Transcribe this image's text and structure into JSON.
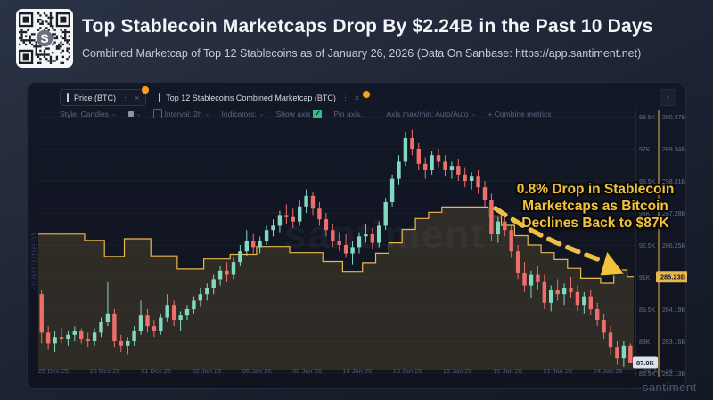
{
  "header": {
    "title": "Top Stablecoin Marketcaps Drop By $2.24B in the Past 10 Days",
    "subtitle": "Combined Marketcap of Top 12 Stablecoins as of January 26, 2026 (Data On Sanbase: https://app.santiment.net)"
  },
  "qr": {
    "logo_letter": "S"
  },
  "icons": {
    "more": "⋮",
    "close": "×",
    "chevron": "⌄",
    "check": "✓",
    "expand": "▫"
  },
  "chart_panel": {
    "tabs": [
      {
        "label": "Price (BTC)",
        "accent_color": "#c7d0e0"
      },
      {
        "label": "Top 12 Stablecoins Combined Marketcap (BTC)",
        "accent_color": "#f0bf45"
      }
    ],
    "toolbar": {
      "style_label": "Style: Candles",
      "interval_label": "Interval: 2h",
      "indicators_label": "Indicators:",
      "show_axis_label": "Show axis",
      "pin_axis_label": "Pin axis.",
      "axis_maxmin_label": "Axis max/min: Auto/Auto",
      "combine_label": "+ Combine metrics"
    },
    "watermark_center": "santiment",
    "watermark_left": "·santiment·",
    "brand_logo": "·santiment·"
  },
  "annotation": {
    "line1": "0.8% Drop in Stablecoin",
    "line2": "Marketcaps as Bitcoin",
    "line3": "Declines Back to $87K"
  },
  "chart_data": {
    "type": "candlestick+step-area",
    "title": "Price (BTC) vs Top 12 Stablecoins Combined Marketcap",
    "x_axis_dates": [
      "25 Dec 25",
      "28 Dec 25",
      "31 Dec 25",
      "02 Jan 26",
      "05 Jan 26",
      "08 Jan 26",
      "10 Jan 26",
      "13 Jan 26",
      "16 Jan 26",
      "19 Jan 26",
      "21 Jan 26",
      "24 Jan 26",
      "26 Jan 26"
    ],
    "price_axis": {
      "labels": [
        "98.5K",
        "97K",
        "95.5K",
        "94K",
        "92.5K",
        "91K",
        "89.5K",
        "88K",
        "86.5K"
      ],
      "top_value_k": 98.5,
      "step_k": 1.5,
      "current_value_k": 87.0,
      "current_badge": "87.0K"
    },
    "marketcap_axis": {
      "labels": [
        "290.37B",
        "289.34B",
        "288.31B",
        "287.28B",
        "286.25B",
        "",
        "284.19B",
        "283.16B",
        "282.13B"
      ],
      "top_value_b": 290.37,
      "step_b": 1.03,
      "current_value_b": 285.23,
      "current_badge": "285.23B"
    },
    "btc_candles_ohlc_k": [
      [
        90.2,
        90.4,
        87.9,
        88.4
      ],
      [
        88.4,
        88.7,
        87.6,
        87.9
      ],
      [
        87.9,
        88.5,
        87.5,
        88.2
      ],
      [
        88.2,
        88.6,
        87.9,
        88.1
      ],
      [
        88.1,
        88.5,
        87.8,
        88.3
      ],
      [
        88.3,
        88.7,
        88.0,
        88.5
      ],
      [
        88.5,
        88.6,
        87.9,
        88.1
      ],
      [
        88.1,
        88.4,
        87.7,
        88.0
      ],
      [
        88.0,
        88.6,
        87.8,
        88.4
      ],
      [
        88.4,
        89.1,
        88.2,
        88.9
      ],
      [
        88.9,
        90.8,
        88.7,
        89.3
      ],
      [
        89.3,
        89.5,
        87.7,
        88.0
      ],
      [
        88.0,
        88.3,
        87.5,
        87.8
      ],
      [
        87.8,
        88.2,
        87.4,
        88.0
      ],
      [
        88.0,
        88.7,
        87.8,
        88.5
      ],
      [
        88.5,
        89.9,
        88.3,
        89.2
      ],
      [
        89.2,
        89.5,
        88.4,
        88.7
      ],
      [
        88.7,
        89.0,
        88.2,
        88.5
      ],
      [
        88.5,
        89.3,
        88.3,
        89.1
      ],
      [
        89.1,
        90.2,
        88.9,
        89.7
      ],
      [
        89.7,
        89.9,
        88.7,
        89.0
      ],
      [
        89.0,
        89.4,
        88.5,
        89.2
      ],
      [
        89.2,
        89.7,
        89.0,
        89.5
      ],
      [
        89.5,
        90.1,
        89.3,
        89.9
      ],
      [
        89.9,
        90.5,
        89.6,
        90.2
      ],
      [
        90.2,
        90.7,
        89.9,
        90.5
      ],
      [
        90.5,
        91.1,
        90.2,
        90.9
      ],
      [
        90.9,
        91.5,
        90.6,
        91.3
      ],
      [
        91.3,
        91.7,
        90.8,
        91.1
      ],
      [
        91.1,
        91.9,
        90.9,
        91.7
      ],
      [
        91.7,
        92.5,
        91.5,
        92.2
      ],
      [
        92.2,
        93.2,
        92.0,
        92.7
      ],
      [
        92.7,
        93.0,
        92.1,
        92.4
      ],
      [
        92.4,
        92.9,
        92.1,
        92.7
      ],
      [
        92.7,
        93.4,
        92.5,
        93.2
      ],
      [
        93.2,
        93.7,
        92.9,
        93.4
      ],
      [
        93.4,
        94.1,
        93.1,
        93.9
      ],
      [
        93.9,
        94.4,
        93.5,
        93.8
      ],
      [
        93.8,
        94.2,
        93.3,
        93.6
      ],
      [
        93.6,
        94.6,
        93.4,
        94.3
      ],
      [
        94.3,
        95.1,
        94.0,
        94.8
      ],
      [
        94.8,
        95.0,
        93.9,
        94.2
      ],
      [
        94.2,
        94.5,
        93.4,
        93.7
      ],
      [
        93.7,
        94.0,
        92.9,
        93.2
      ],
      [
        93.2,
        93.5,
        92.4,
        92.7
      ],
      [
        92.7,
        93.1,
        92.2,
        92.5
      ],
      [
        92.5,
        93.0,
        91.9,
        92.1
      ],
      [
        92.1,
        92.7,
        91.6,
        92.4
      ],
      [
        92.4,
        93.1,
        92.1,
        92.9
      ],
      [
        92.9,
        93.5,
        92.6,
        93.0
      ],
      [
        93.0,
        93.3,
        92.3,
        92.6
      ],
      [
        92.6,
        93.6,
        92.4,
        93.4
      ],
      [
        93.4,
        94.7,
        93.2,
        94.5
      ],
      [
        94.5,
        95.8,
        94.3,
        95.6
      ],
      [
        95.6,
        96.7,
        95.3,
        96.4
      ],
      [
        96.4,
        97.8,
        96.2,
        97.5
      ],
      [
        97.5,
        97.9,
        96.7,
        97.0
      ],
      [
        97.0,
        97.3,
        96.0,
        96.3
      ],
      [
        96.3,
        96.6,
        95.6,
        96.0
      ],
      [
        96.0,
        96.9,
        95.8,
        96.7
      ],
      [
        96.7,
        97.0,
        96.1,
        96.4
      ],
      [
        96.4,
        96.7,
        95.7,
        96.0
      ],
      [
        96.0,
        96.4,
        95.6,
        96.2
      ],
      [
        96.2,
        96.5,
        95.5,
        95.8
      ],
      [
        95.8,
        96.1,
        95.2,
        95.5
      ],
      [
        95.5,
        95.9,
        95.1,
        95.7
      ],
      [
        95.7,
        96.0,
        94.9,
        95.2
      ],
      [
        95.2,
        95.5,
        94.3,
        94.6
      ],
      [
        94.6,
        94.9,
        92.7,
        93.0
      ],
      [
        93.0,
        93.8,
        92.6,
        93.6
      ],
      [
        93.6,
        93.9,
        92.9,
        93.2
      ],
      [
        93.2,
        93.4,
        91.9,
        92.2
      ],
      [
        92.2,
        92.5,
        90.9,
        91.2
      ],
      [
        91.2,
        91.7,
        90.3,
        90.6
      ],
      [
        90.6,
        91.3,
        90.0,
        91.1
      ],
      [
        91.1,
        91.5,
        90.4,
        90.8
      ],
      [
        90.8,
        91.1,
        89.5,
        89.8
      ],
      [
        89.8,
        90.6,
        89.4,
        90.4
      ],
      [
        90.4,
        90.9,
        89.9,
        90.2
      ],
      [
        90.2,
        90.7,
        89.7,
        90.5
      ],
      [
        90.5,
        91.0,
        90.0,
        90.3
      ],
      [
        90.3,
        90.6,
        89.4,
        89.7
      ],
      [
        89.7,
        90.3,
        89.3,
        90.1
      ],
      [
        90.1,
        90.4,
        89.2,
        89.5
      ],
      [
        89.5,
        89.8,
        88.7,
        89.0
      ],
      [
        89.0,
        89.3,
        88.1,
        88.4
      ],
      [
        88.4,
        88.7,
        87.4,
        87.7
      ],
      [
        87.7,
        88.0,
        86.9,
        87.2
      ],
      [
        87.2,
        88.0,
        86.8,
        87.8
      ],
      [
        87.8,
        87.9,
        87.0,
        87.0
      ]
    ],
    "stablecoin_marketcap_steps_b": [
      [
        0,
        286.6
      ],
      [
        7,
        286.4
      ],
      [
        10,
        285.88
      ],
      [
        13,
        286.45
      ],
      [
        17,
        285.9
      ],
      [
        21,
        285.48
      ],
      [
        25,
        285.8
      ],
      [
        29,
        285.95
      ],
      [
        33,
        286.2
      ],
      [
        38,
        286.0
      ],
      [
        43,
        285.72
      ],
      [
        46,
        285.4
      ],
      [
        49,
        285.68
      ],
      [
        51,
        285.98
      ],
      [
        53,
        286.32
      ],
      [
        55,
        286.75
      ],
      [
        57,
        287.1
      ],
      [
        59,
        287.3
      ],
      [
        61,
        287.47
      ],
      [
        68,
        287.18
      ],
      [
        70,
        286.88
      ],
      [
        72,
        286.55
      ],
      [
        74,
        286.25
      ],
      [
        76,
        286.0
      ],
      [
        78,
        285.78
      ],
      [
        80,
        285.5
      ],
      [
        82,
        285.18
      ],
      [
        85,
        285.02
      ],
      [
        87,
        285.45
      ],
      [
        89,
        285.23
      ]
    ],
    "colors": {
      "candle_up": "#82d9c0",
      "candle_down": "#ef6e6a",
      "marketcap_line": "#e9b84d",
      "marketcap_fill": "rgba(222,176,70,0.15)",
      "badge_price_bg": "#dde3ee",
      "annotation_yellow": "#f2c23e",
      "notification_dot": "#ff9f1a"
    },
    "legend_position": "top-left-tabs",
    "grid": "off"
  }
}
